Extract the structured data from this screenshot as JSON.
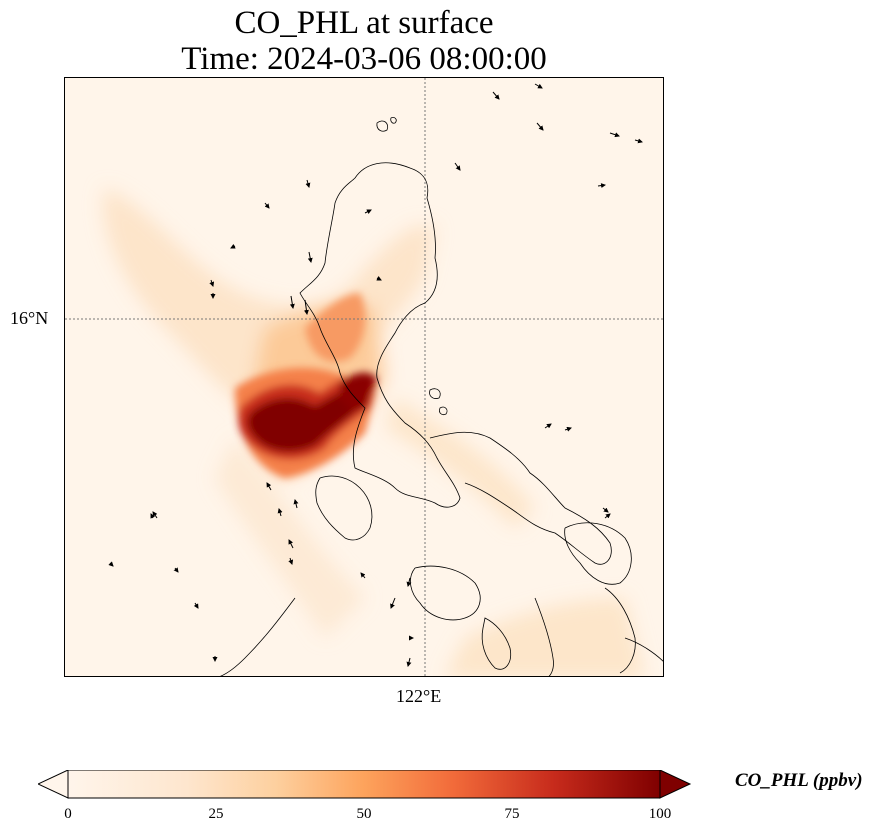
{
  "title": {
    "line1": "CO_PHL at surface",
    "line2": "Time: 2024-03-06 08:00:00"
  },
  "map": {
    "lat_label": "16°N",
    "lon_label": "122°E",
    "variable": "CO_PHL",
    "units": "ppbv",
    "colormap": [
      "#fff5eb",
      "#fdd09f",
      "#fda35c",
      "#f26b3a",
      "#c72b1c",
      "#7f0000"
    ]
  },
  "colorbar": {
    "label": "CO_PHL (ppbv)",
    "min": 0,
    "max": 100,
    "ticks": [
      "0",
      "25",
      "50",
      "75",
      "100"
    ],
    "extend": "both"
  }
}
